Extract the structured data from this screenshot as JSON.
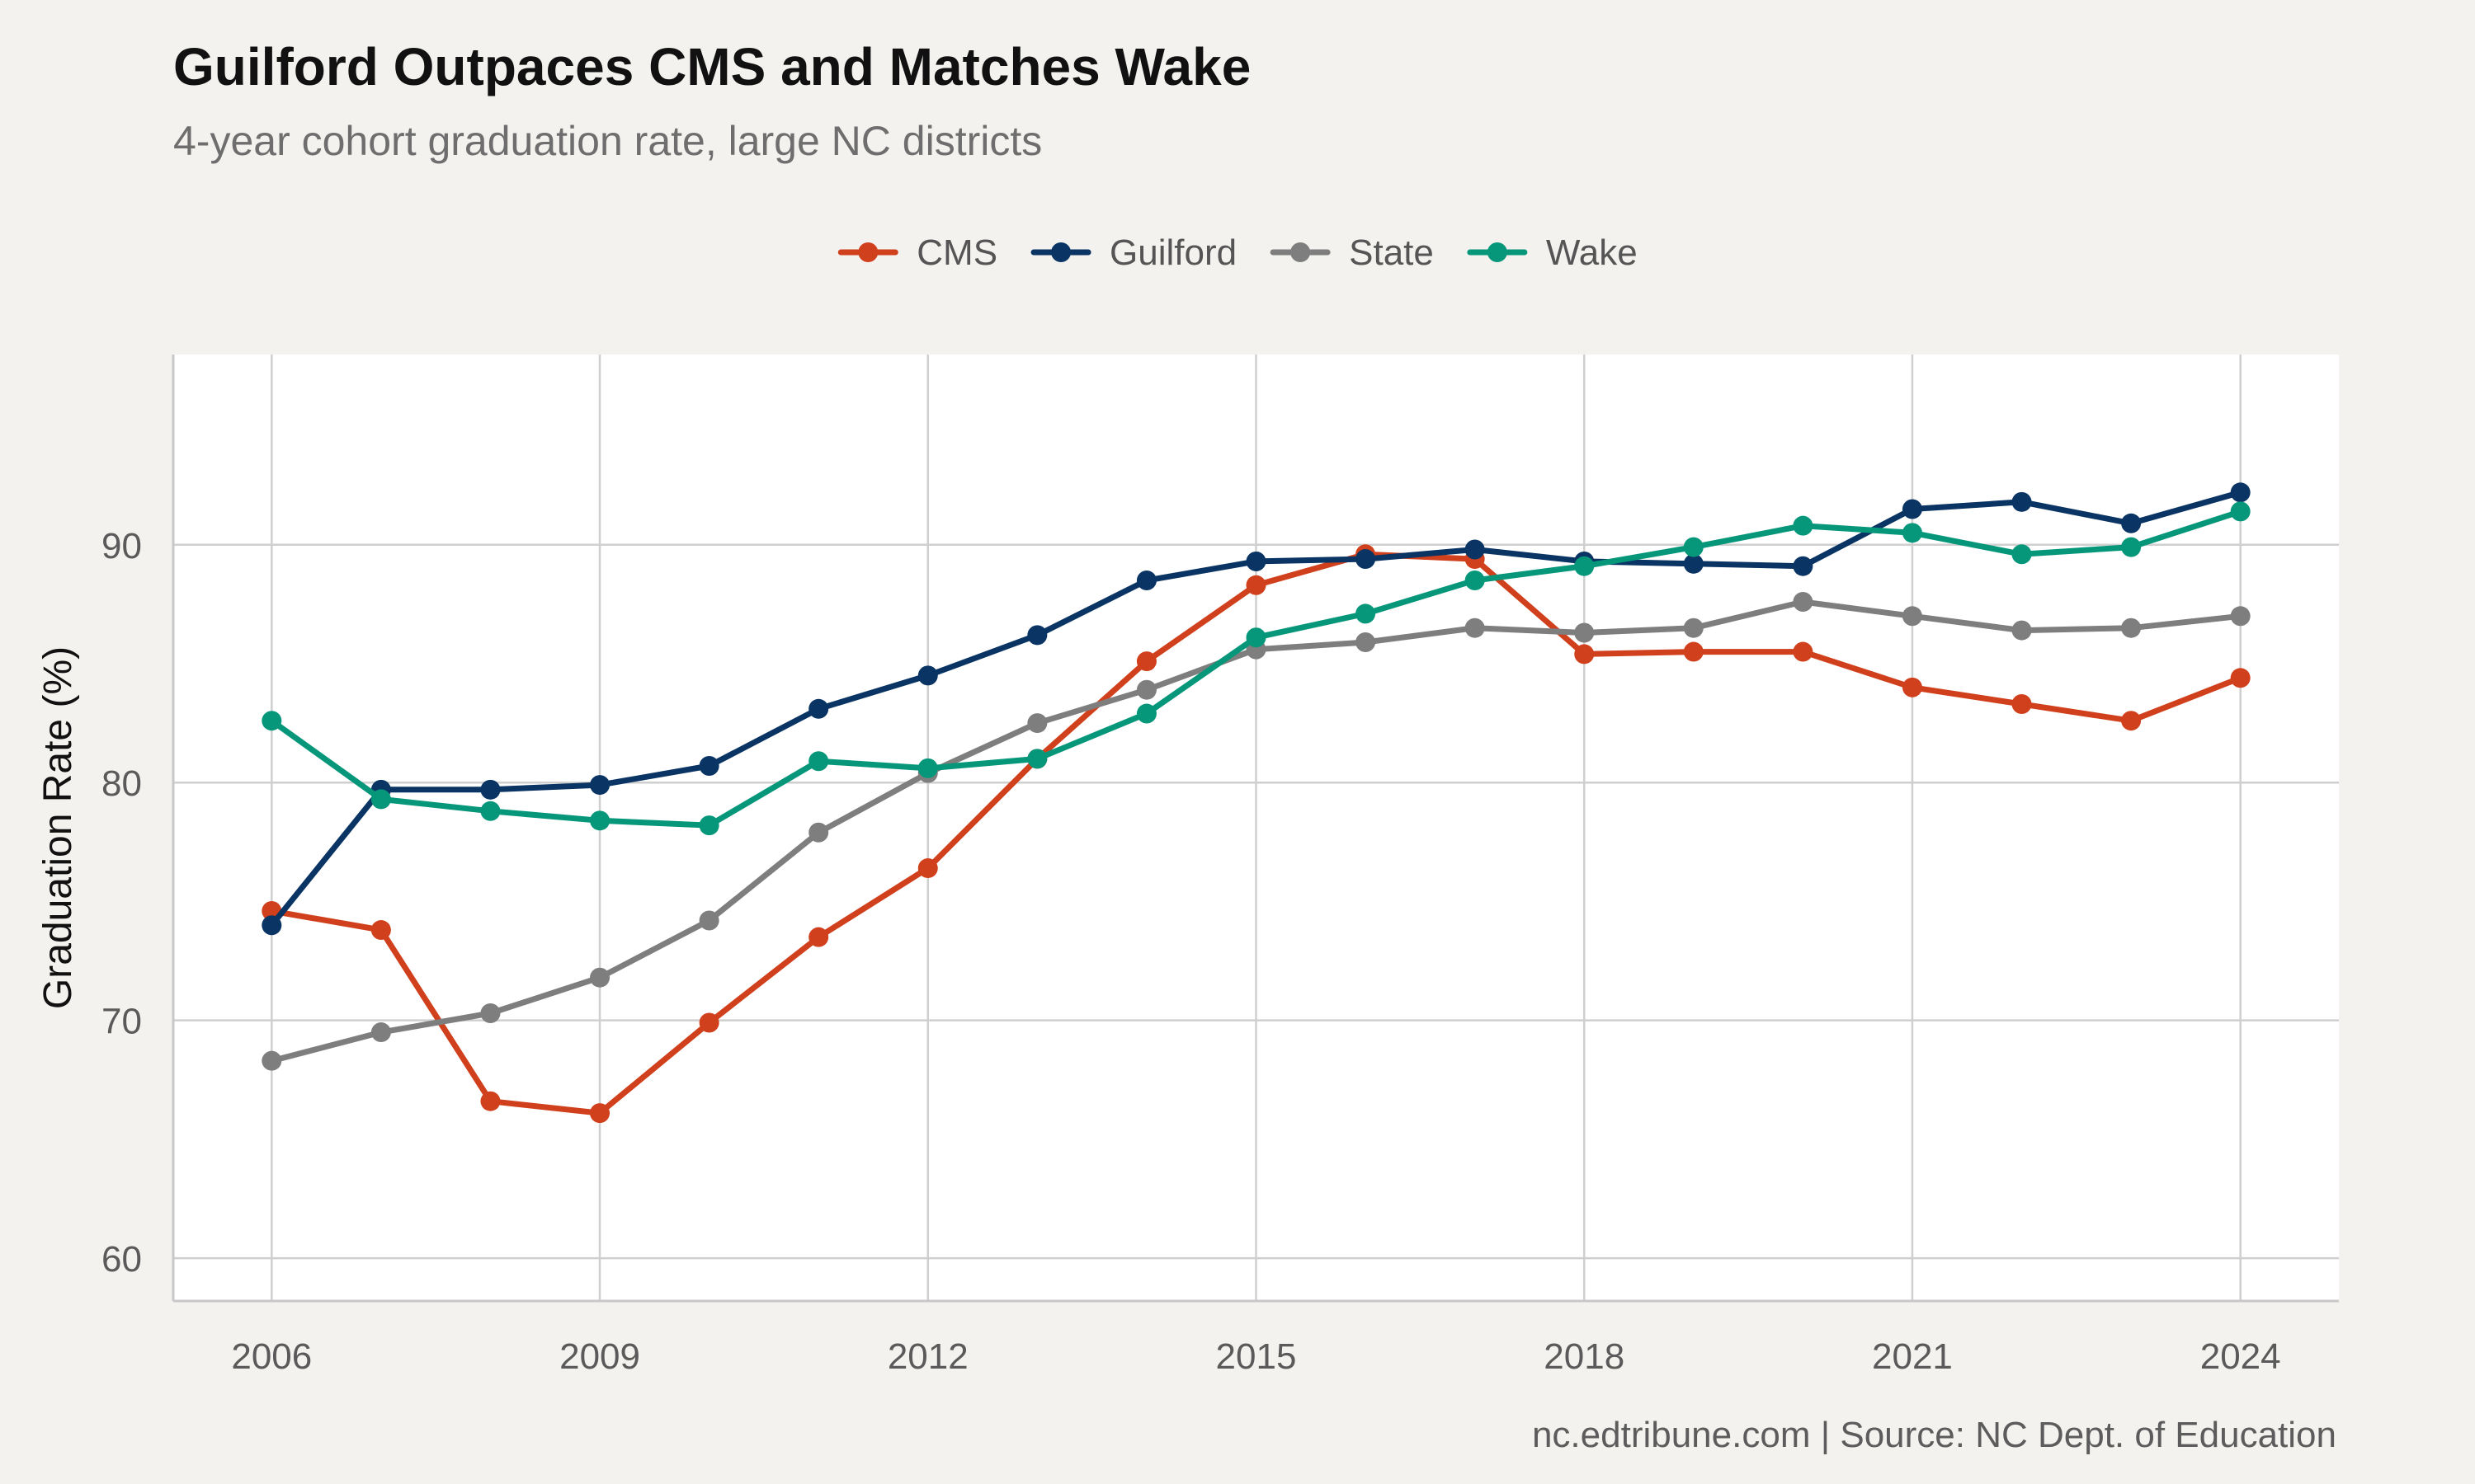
{
  "chart_data": {
    "type": "line",
    "title": "Guilford Outpaces CMS and Matches Wake",
    "subtitle": "4-year cohort graduation rate, large NC districts",
    "ylabel": "Graduation Rate (%)",
    "xlabel": "",
    "caption": "nc.edtribune.com | Source: NC Dept. of Education",
    "legend_position": "top",
    "grid": true,
    "xlim": [
      2005.1,
      2024.9
    ],
    "ylim": [
      58.2,
      98
    ],
    "x_ticks": [
      2006,
      2009,
      2012,
      2015,
      2018,
      2021,
      2024
    ],
    "y_ticks": [
      60,
      70,
      80,
      90
    ],
    "x": [
      2006,
      2007,
      2008,
      2009,
      2010,
      2011,
      2012,
      2013,
      2014,
      2015,
      2016,
      2017,
      2018,
      2019,
      2020,
      2021,
      2022,
      2023,
      2024
    ],
    "series": [
      {
        "name": "CMS",
        "color": "#d1401c",
        "values": [
          74.6,
          73.8,
          66.6,
          66.1,
          69.9,
          73.5,
          76.4,
          81.0,
          85.1,
          88.3,
          89.6,
          89.4,
          85.4,
          85.5,
          85.5,
          84.0,
          83.3,
          82.6,
          84.4
        ]
      },
      {
        "name": "Guilford",
        "color": "#0a3463",
        "values": [
          74.0,
          79.7,
          79.7,
          79.9,
          80.7,
          83.1,
          84.5,
          86.2,
          88.5,
          89.3,
          89.4,
          89.8,
          89.3,
          89.2,
          89.1,
          91.5,
          91.8,
          90.9,
          92.2
        ]
      },
      {
        "name": "State",
        "color": "#7e7e7e",
        "values": [
          68.3,
          69.5,
          70.3,
          71.8,
          74.2,
          77.9,
          80.4,
          82.5,
          83.9,
          85.6,
          85.9,
          86.5,
          86.3,
          86.5,
          87.6,
          87.0,
          86.4,
          86.5,
          87.0
        ]
      },
      {
        "name": "Wake",
        "color": "#06977a",
        "values": [
          82.6,
          79.3,
          78.8,
          78.4,
          78.2,
          80.9,
          80.6,
          81.0,
          82.9,
          86.1,
          87.1,
          88.5,
          89.1,
          89.9,
          90.8,
          90.5,
          89.6,
          89.9,
          91.4
        ]
      }
    ]
  }
}
